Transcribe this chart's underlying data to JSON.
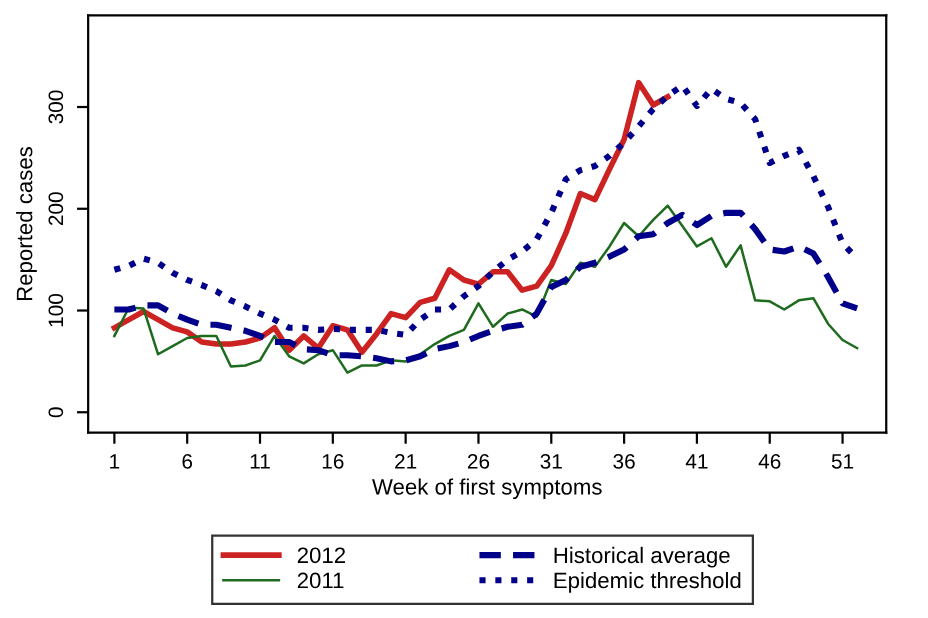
{
  "chart_data": {
    "type": "line",
    "xlabel": "Week of first symptoms",
    "ylabel": "Reported cases",
    "xlim": [
      -0.8,
      54
    ],
    "ylim": [
      -20,
      390
    ],
    "xticks": [
      1,
      6,
      11,
      16,
      21,
      26,
      31,
      36,
      41,
      46,
      51
    ],
    "yticks": [
      0,
      100,
      200,
      300
    ],
    "grid": false,
    "legend": "bottom",
    "series": [
      {
        "name": "2012",
        "color": "#cc2222",
        "line_style": "solid",
        "x": [
          1,
          2,
          3,
          4,
          5,
          6,
          7,
          8,
          9,
          10,
          11,
          12,
          13,
          14,
          15,
          16,
          17,
          18,
          19,
          20,
          21,
          22,
          23,
          24,
          25,
          26,
          27,
          28,
          29,
          30,
          31,
          32,
          33,
          34,
          35,
          36,
          37,
          38,
          39
        ],
        "values": [
          83,
          91,
          99,
          91,
          83,
          79,
          69,
          67,
          67,
          69,
          73,
          83,
          61,
          75,
          63,
          85,
          81,
          59,
          77,
          97,
          93,
          108,
          112,
          140,
          130,
          126,
          138,
          138,
          120,
          124,
          144,
          176,
          215,
          209,
          239,
          268,
          324,
          302,
          310
        ]
      },
      {
        "name": "2011",
        "color": "#1e6b1e",
        "line_style": "solid",
        "x": [
          1,
          2,
          3,
          4,
          5,
          6,
          7,
          8,
          9,
          10,
          11,
          12,
          13,
          14,
          15,
          16,
          17,
          18,
          19,
          20,
          21,
          22,
          23,
          24,
          25,
          26,
          27,
          28,
          29,
          30,
          31,
          32,
          33,
          34,
          35,
          36,
          37,
          38,
          39,
          40,
          41,
          42,
          43,
          44,
          45,
          46,
          47,
          48,
          49,
          50,
          51,
          52
        ],
        "values": [
          75,
          103,
          102,
          57,
          65,
          73,
          75,
          75,
          45,
          46,
          51,
          75,
          55,
          48,
          57,
          61,
          39,
          46,
          46,
          51,
          50,
          57,
          67,
          75,
          81,
          107,
          84,
          97,
          101,
          94,
          130,
          126,
          147,
          143,
          163,
          186,
          173,
          189,
          203,
          183,
          163,
          171,
          143,
          164,
          110,
          109,
          101,
          110,
          112,
          87,
          71,
          63
        ]
      },
      {
        "name": "Historical average",
        "color": "#00008b",
        "line_style": "dashed",
        "x": [
          1,
          2,
          3,
          4,
          5,
          6,
          7,
          8,
          9,
          10,
          11,
          12,
          13,
          14,
          15,
          16,
          17,
          18,
          19,
          20,
          21,
          22,
          23,
          24,
          25,
          26,
          27,
          28,
          29,
          30,
          31,
          32,
          33,
          34,
          35,
          36,
          37,
          38,
          39,
          40,
          41,
          42,
          43,
          44,
          45,
          46,
          47,
          48,
          49,
          50,
          51,
          52
        ],
        "values": [
          101,
          101,
          105,
          105,
          97,
          91,
          86,
          86,
          83,
          80,
          75,
          69,
          69,
          62,
          61,
          56,
          56,
          55,
          53,
          50,
          51,
          55,
          62,
          65,
          69,
          75,
          80,
          84,
          86,
          97,
          123,
          130,
          143,
          147,
          153,
          160,
          173,
          175,
          186,
          194,
          184,
          193,
          196,
          196,
          180,
          160,
          158,
          163,
          156,
          133,
          107,
          102
        ]
      },
      {
        "name": "Epidemic threshold",
        "color": "#00008b",
        "line_style": "dotted",
        "x": [
          1,
          2,
          3,
          4,
          5,
          6,
          7,
          8,
          9,
          10,
          11,
          12,
          13,
          14,
          15,
          16,
          17,
          18,
          19,
          20,
          21,
          22,
          23,
          24,
          25,
          26,
          27,
          28,
          29,
          30,
          31,
          32,
          33,
          34,
          35,
          36,
          37,
          38,
          39,
          40,
          41,
          42,
          43,
          44,
          45,
          46,
          47,
          48,
          49,
          50,
          51,
          52
        ],
        "values": [
          140,
          144,
          151,
          147,
          137,
          130,
          125,
          119,
          110,
          104,
          97,
          91,
          83,
          83,
          81,
          82,
          81,
          81,
          81,
          78,
          76,
          91,
          101,
          101,
          114,
          124,
          138,
          150,
          158,
          170,
          196,
          229,
          238,
          242,
          252,
          265,
          281,
          298,
          311,
          321,
          301,
          318,
          308,
          304,
          288,
          245,
          252,
          258,
          232,
          202,
          166,
          151
        ]
      }
    ]
  }
}
